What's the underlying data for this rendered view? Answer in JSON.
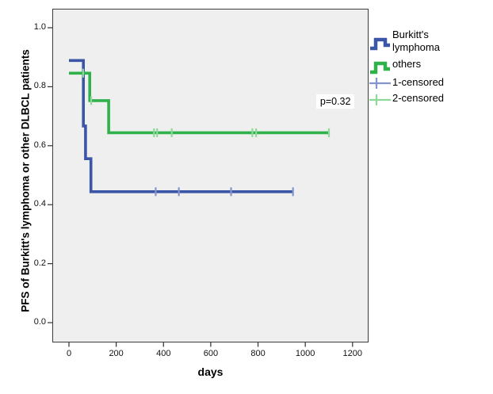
{
  "axes": {
    "y": {
      "title": "PFS of Burkitt's lymphoma or other DLBCL patients",
      "tick_labels": [
        "0.0",
        "0.2",
        "0.4",
        "0.6",
        "0.8",
        "1.0"
      ]
    },
    "x": {
      "title": "days",
      "tick_labels": [
        "0",
        "200",
        "400",
        "600",
        "800",
        "1000",
        "1200"
      ]
    }
  },
  "annotation": {
    "text": "p=0.32"
  },
  "legend": {
    "items": [
      {
        "label": "Burkitt's lymphoma",
        "marker": "step-line-icon",
        "color": "#3b56a6"
      },
      {
        "label": "others",
        "marker": "step-line-icon",
        "color": "#30b14a"
      },
      {
        "label": "1-censored",
        "marker": "censor-plus-icon",
        "color": "#8494cc"
      },
      {
        "label": "2-censored",
        "marker": "censor-plus-icon",
        "color": "#8cd99a"
      }
    ]
  },
  "colors": {
    "plot_background": "#efefef",
    "frame": "#3c3c3c",
    "series1": "#3b56a6",
    "series1_censor": "#8494cc",
    "series2": "#30b14a",
    "series2_censor": "#8cd99a"
  },
  "chart_data": {
    "type": "line",
    "subtype": "kaplan-meier-step",
    "title": "",
    "xlabel": "days",
    "ylabel": "PFS of Burkitt's lymphoma or other DLBCL patients",
    "xlim": [
      0,
      1200
    ],
    "ylim": [
      0.0,
      1.0
    ],
    "x_tick_values": [
      0,
      200,
      400,
      600,
      800,
      1000,
      1200
    ],
    "y_tick_values": [
      0.0,
      0.2,
      0.4,
      0.6,
      0.8,
      1.0
    ],
    "grid": false,
    "legend_position": "right-outside",
    "series": [
      {
        "name": "Burkitt's lymphoma",
        "color": "#3b56a6",
        "censor_color": "#8494cc",
        "steps": [
          [
            0,
            0.889
          ],
          [
            61,
            0.889
          ],
          [
            61,
            0.667
          ],
          [
            70,
            0.667
          ],
          [
            70,
            0.556
          ],
          [
            93,
            0.556
          ],
          [
            93,
            0.444
          ],
          [
            948,
            0.444
          ]
        ],
        "censored": [
          [
            367,
            0.444
          ],
          [
            465,
            0.444
          ],
          [
            686,
            0.444
          ],
          [
            948,
            0.444
          ]
        ]
      },
      {
        "name": "others",
        "color": "#30b14a",
        "censor_color": "#8cd99a",
        "steps": [
          [
            0,
            0.846
          ],
          [
            88,
            0.846
          ],
          [
            88,
            0.753
          ],
          [
            168,
            0.753
          ],
          [
            168,
            0.644
          ],
          [
            1100,
            0.644
          ]
        ],
        "censored": [
          [
            60,
            0.846
          ],
          [
            94,
            0.753
          ],
          [
            360,
            0.644
          ],
          [
            373,
            0.644
          ],
          [
            435,
            0.644
          ],
          [
            776,
            0.644
          ],
          [
            792,
            0.644
          ],
          [
            1100,
            0.644
          ]
        ]
      }
    ],
    "annotations": [
      {
        "text": "p=0.32",
        "x_days": 1046,
        "y_prob": 0.774,
        "anchor": "top-left"
      }
    ],
    "legend_entries": [
      "Burkitt's lymphoma",
      "others",
      "1-censored",
      "2-censored"
    ]
  }
}
